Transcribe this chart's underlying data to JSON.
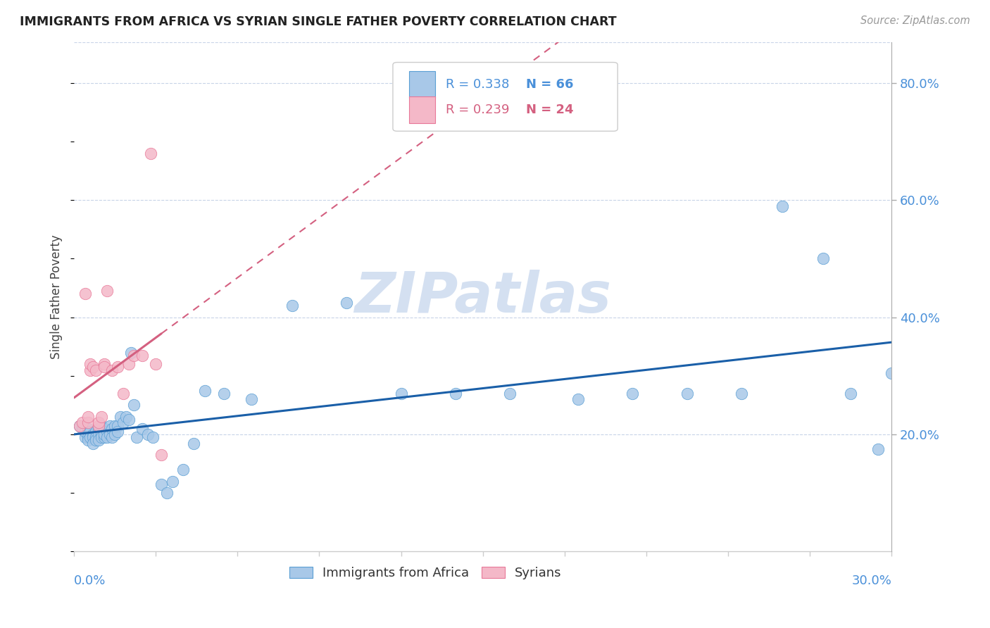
{
  "title": "IMMIGRANTS FROM AFRICA VS SYRIAN SINGLE FATHER POVERTY CORRELATION CHART",
  "source": "Source: ZipAtlas.com",
  "ylabel": "Single Father Poverty",
  "ylabel_right_ticks": [
    "80.0%",
    "60.0%",
    "40.0%",
    "20.0%"
  ],
  "ylabel_right_vals": [
    0.8,
    0.6,
    0.4,
    0.2
  ],
  "xlim": [
    0.0,
    0.3
  ],
  "ylim": [
    0.0,
    0.87
  ],
  "color_blue": "#a8c8e8",
  "color_pink": "#f4b8c8",
  "color_blue_edge": "#5a9fd4",
  "color_pink_edge": "#e87898",
  "color_blue_line": "#1a5fa8",
  "color_pink_line": "#d46080",
  "color_axis": "#4a90d9",
  "color_grid": "#c8d4e8",
  "watermark_color": "#d0ddf0",
  "africa_x": [
    0.002,
    0.003,
    0.004,
    0.004,
    0.005,
    0.005,
    0.005,
    0.006,
    0.006,
    0.007,
    0.007,
    0.007,
    0.008,
    0.008,
    0.008,
    0.009,
    0.009,
    0.009,
    0.01,
    0.01,
    0.01,
    0.011,
    0.011,
    0.011,
    0.012,
    0.012,
    0.013,
    0.013,
    0.014,
    0.014,
    0.015,
    0.015,
    0.016,
    0.016,
    0.017,
    0.018,
    0.019,
    0.02,
    0.021,
    0.022,
    0.023,
    0.025,
    0.027,
    0.029,
    0.032,
    0.034,
    0.036,
    0.04,
    0.044,
    0.048,
    0.055,
    0.065,
    0.08,
    0.1,
    0.12,
    0.14,
    0.16,
    0.185,
    0.205,
    0.225,
    0.245,
    0.26,
    0.275,
    0.285,
    0.295,
    0.3
  ],
  "africa_y": [
    0.215,
    0.21,
    0.195,
    0.205,
    0.195,
    0.21,
    0.19,
    0.205,
    0.195,
    0.2,
    0.195,
    0.185,
    0.205,
    0.195,
    0.19,
    0.21,
    0.2,
    0.19,
    0.215,
    0.2,
    0.195,
    0.21,
    0.195,
    0.2,
    0.205,
    0.195,
    0.215,
    0.2,
    0.21,
    0.195,
    0.215,
    0.2,
    0.215,
    0.205,
    0.23,
    0.22,
    0.23,
    0.225,
    0.34,
    0.25,
    0.195,
    0.21,
    0.2,
    0.195,
    0.115,
    0.1,
    0.12,
    0.14,
    0.185,
    0.275,
    0.27,
    0.26,
    0.42,
    0.425,
    0.27,
    0.27,
    0.27,
    0.26,
    0.27,
    0.27,
    0.27,
    0.59,
    0.5,
    0.27,
    0.175,
    0.305
  ],
  "syria_x": [
    0.002,
    0.003,
    0.004,
    0.005,
    0.005,
    0.006,
    0.006,
    0.007,
    0.008,
    0.009,
    0.009,
    0.01,
    0.011,
    0.011,
    0.012,
    0.014,
    0.016,
    0.018,
    0.02,
    0.022,
    0.025,
    0.028,
    0.03,
    0.032
  ],
  "syria_y": [
    0.215,
    0.22,
    0.44,
    0.22,
    0.23,
    0.31,
    0.32,
    0.315,
    0.31,
    0.215,
    0.22,
    0.23,
    0.32,
    0.315,
    0.445,
    0.31,
    0.315,
    0.27,
    0.32,
    0.335,
    0.335,
    0.68,
    0.32,
    0.165
  ]
}
